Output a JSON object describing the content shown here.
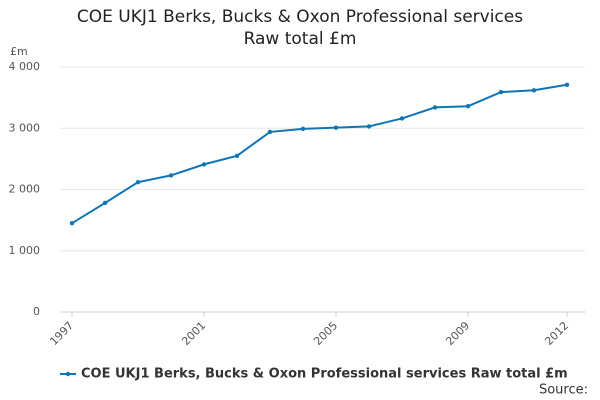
{
  "chart_data": {
    "type": "line",
    "title": "COE UKJ1 Berks, Bucks & Oxon Professional services Raw total £m",
    "y_label": "£m",
    "x": [
      1997,
      1998,
      1999,
      2000,
      2001,
      2002,
      2003,
      2004,
      2005,
      2006,
      2007,
      2008,
      2009,
      2010,
      2011,
      2012
    ],
    "series": [
      {
        "name": "COE UKJ1 Berks, Bucks & Oxon Professional services Raw total £m",
        "color": "#0f75b5",
        "values": [
          1450,
          1780,
          2120,
          2230,
          2410,
          2550,
          2940,
          2990,
          3010,
          3030,
          3160,
          3340,
          3360,
          3590,
          3620,
          3710
        ]
      }
    ],
    "xlim": [
      1997,
      2012
    ],
    "xticks": [
      1997,
      2001,
      2005,
      2009,
      2012
    ],
    "ylim": [
      0,
      4000
    ],
    "yticks": [
      0,
      {
        "value": 1000,
        "label": "1 000"
      },
      {
        "value": 2000,
        "label": "2 000"
      },
      {
        "value": 3000,
        "label": "3 000"
      },
      {
        "value": 4000,
        "label": "4 000"
      }
    ],
    "grid": true,
    "source_label": "Source:"
  }
}
